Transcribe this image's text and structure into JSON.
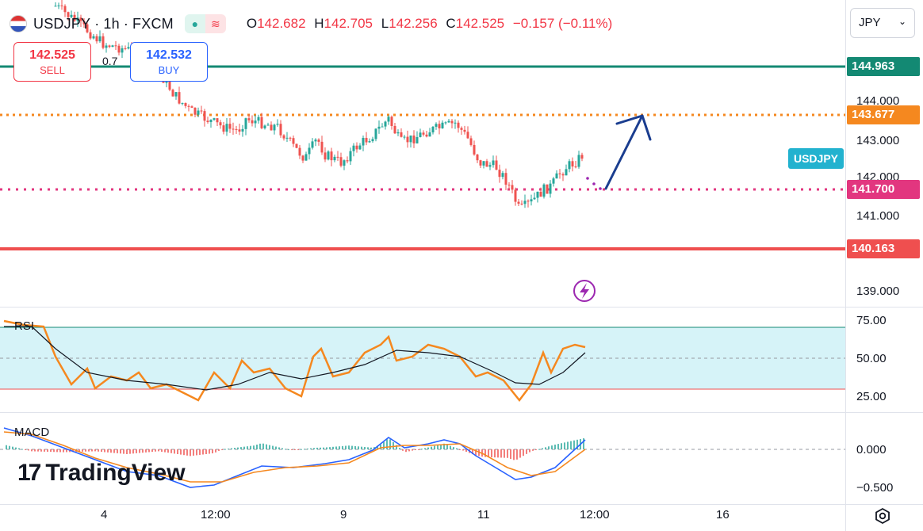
{
  "header": {
    "symbol": "USDJPY",
    "separator": "·",
    "interval": "1h",
    "broker": "FXCM",
    "ohlc": {
      "o_label": "O",
      "o": "142.682",
      "h_label": "H",
      "h": "142.705",
      "l_label": "L",
      "l": "142.256",
      "c_label": "C",
      "c": "142.525",
      "change": "−0.157 (−0.11%)"
    },
    "icons": [
      "circle-dot-icon",
      "wave-icon"
    ]
  },
  "trade": {
    "sell_price": "142.525",
    "sell_label": "SELL",
    "spread": "0.7",
    "buy_price": "142.532",
    "buy_label": "BUY"
  },
  "currency_selector": {
    "value": "JPY"
  },
  "price_axis": {
    "ticks": [
      "144.000",
      "143.000",
      "142.000",
      "141.000",
      "139.000"
    ],
    "labels": [
      {
        "value": "144.963",
        "color": "#138973"
      },
      {
        "value": "143.677",
        "color": "#f5881f"
      },
      {
        "value": "141.700",
        "color": "#e2367f"
      },
      {
        "value": "140.163",
        "color": "#ef4f4f"
      }
    ]
  },
  "symbol_tag": "USDJPY",
  "rsi": {
    "label": "RSI",
    "ticks": [
      "75.00",
      "50.00",
      "25.00"
    ]
  },
  "macd": {
    "label": "MACD",
    "ticks": [
      "0.000",
      "−0.500"
    ]
  },
  "time_axis": {
    "labels": [
      "4",
      "12:00",
      "9",
      "11",
      "12:00",
      "16"
    ]
  },
  "branding": {
    "logo_text": "TradingView",
    "logo_mark": "17"
  },
  "colors": {
    "up": "#26a69a",
    "down": "#ef5350",
    "rsi_line": "#f5881f",
    "rsi_band": "#d6f3f8",
    "resistance": "#138973",
    "support": "#ef4f4f",
    "arrow": "#1a3d8f"
  }
}
